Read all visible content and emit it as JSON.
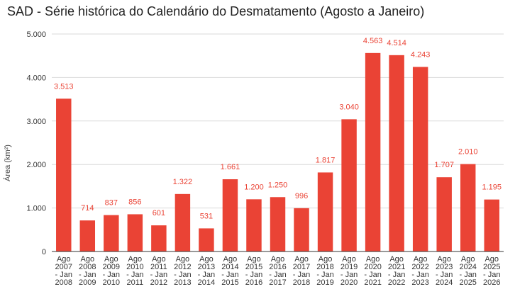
{
  "chart_data": {
    "type": "bar",
    "title": "SAD - Série histórica do Calendário do Desmatamento (Agosto a Janeiro)",
    "xlabel": "",
    "ylabel": "Área (km²)",
    "ylim": [
      0,
      5000
    ],
    "yticks": [
      "0",
      "1.000",
      "2.000",
      "3.000",
      "4.000",
      "5.000"
    ],
    "ytick_values": [
      0,
      1000,
      2000,
      3000,
      4000,
      5000
    ],
    "grid": true,
    "legend": "none",
    "bar_color": "#ea4335",
    "label_color": "#ea4335",
    "categories": [
      [
        "Ago",
        "2007",
        "- Jan",
        "2008"
      ],
      [
        "Ago",
        "2008",
        "- Jan",
        "2009"
      ],
      [
        "Ago",
        "2009",
        "- Jan",
        "2010"
      ],
      [
        "Ago",
        "2010",
        "- Jan",
        "2011"
      ],
      [
        "Ago",
        "2011",
        "- Jan",
        "2012"
      ],
      [
        "Ago",
        "2012",
        "- Jan",
        "2013"
      ],
      [
        "Ago",
        "2013",
        "- Jan",
        "2014"
      ],
      [
        "Ago",
        "2014",
        "- Jan",
        "2015"
      ],
      [
        "Ago",
        "2015",
        "- Jan",
        "2016"
      ],
      [
        "Ago",
        "2016",
        "- Jan",
        "2017"
      ],
      [
        "Ago",
        "2017",
        "- Jan",
        "2018"
      ],
      [
        "Ago",
        "2018",
        "- Jan",
        "2019"
      ],
      [
        "Ago",
        "2019",
        "- Jan",
        "2020"
      ],
      [
        "Ago",
        "2020",
        "- Jan",
        "2021"
      ],
      [
        "Ago",
        "2021",
        "- Jan",
        "2022"
      ],
      [
        "Ago",
        "2022",
        "- Jan",
        "2023"
      ],
      [
        "Ago",
        "2023",
        "- Jan",
        "2024"
      ],
      [
        "Ago",
        "2024",
        "- Jan",
        "2025"
      ],
      [
        "Ago",
        "2025",
        "- Jan",
        "2026"
      ]
    ],
    "values": [
      3513,
      714,
      837,
      856,
      601,
      1322,
      531,
      1661,
      1200,
      1250,
      996,
      1817,
      3040,
      4563,
      4514,
      4243,
      1707,
      2010,
      1195
    ],
    "value_labels": [
      "3.513",
      "714",
      "837",
      "856",
      "601",
      "1.322",
      "531",
      "1.661",
      "1.200",
      "1.250",
      "996",
      "1.817",
      "3.040",
      "4.563",
      "4.514",
      "4.243",
      "1.707",
      "2.010",
      "1.195"
    ]
  }
}
